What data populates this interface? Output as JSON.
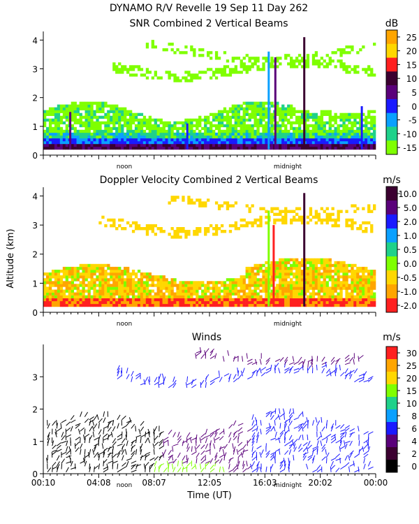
{
  "header": {
    "line1": "DYNAMO R/V Revelle  19 Sep 11 Day 262"
  },
  "chart_data": [
    {
      "type": "heatmap",
      "id": "snr",
      "title": "SNR Combined 2 Vertical Beams",
      "ylabel": "",
      "ylim": [
        0,
        4.3
      ],
      "yticks": [
        0,
        1,
        2,
        3,
        4
      ],
      "xticks_minor_labels": [
        "noon",
        "midnight"
      ],
      "colorbar": {
        "unit": "dB",
        "labels": [
          "25",
          "20",
          "15",
          "10",
          "5",
          "0",
          "-5",
          "-10",
          "-15"
        ],
        "colors": [
          "#ffa500",
          "#ffd700",
          "#ff2020",
          "#3b0030",
          "#5a007a",
          "#1a1aff",
          "#0aa0ff",
          "#1fd18a",
          "#7fff00"
        ]
      }
    },
    {
      "type": "heatmap",
      "id": "doppler",
      "title": "Doppler Velocity Combined 2 Vertical Beams",
      "ylabel": "Altitude (km)",
      "ylim": [
        0,
        4.3
      ],
      "yticks": [
        0,
        1,
        2,
        3,
        4
      ],
      "xticks_minor_labels": [
        "noon",
        "midnight"
      ],
      "colorbar": {
        "unit": "m/s",
        "labels": [
          "10.0",
          "5.0",
          "2.0",
          "1.0",
          "0.5",
          "0.0",
          "-0.5",
          "-1.0",
          "-2.0"
        ],
        "colors": [
          "#3b0030",
          "#5a007a",
          "#1a1aff",
          "#0aa0ff",
          "#1fd18a",
          "#7fff00",
          "#ffd700",
          "#ffa500",
          "#ff2020"
        ]
      }
    },
    {
      "type": "scatter",
      "id": "winds",
      "title": "Winds",
      "ylabel": "",
      "ylim": [
        0,
        4
      ],
      "yticks": [
        0,
        1,
        2,
        3
      ],
      "xlabel": "Time (UT)",
      "xticks": [
        "00:10",
        "04:08",
        "08:07",
        "12:05",
        "16:03",
        "20:02",
        "00:00"
      ],
      "xticks_minor_labels": [
        "noon",
        "midnight"
      ],
      "colorbar": {
        "unit": "m/s",
        "labels": [
          "30",
          "25",
          "20",
          "15",
          "10",
          "8",
          "6",
          "4",
          "2",
          "0"
        ],
        "colors": [
          "#ff2020",
          "#ffa500",
          "#ffd700",
          "#7fff00",
          "#1fd18a",
          "#0aa0ff",
          "#1a1aff",
          "#5a007a",
          "#3b0030",
          "#000000"
        ]
      }
    }
  ]
}
